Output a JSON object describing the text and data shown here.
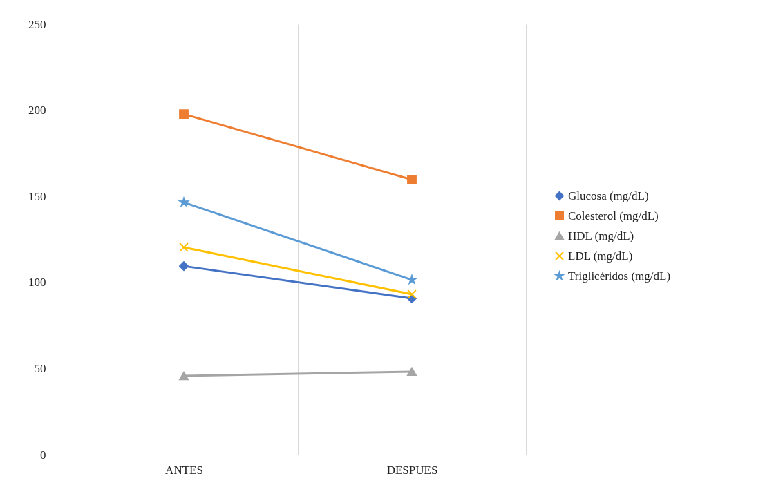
{
  "chart_data": {
    "type": "line",
    "categories": [
      "ANTES",
      "DESPUES"
    ],
    "ylim": [
      0,
      250
    ],
    "yticks": [
      0,
      50,
      100,
      150,
      200,
      250
    ],
    "grid": "x",
    "legend": "right",
    "series": [
      {
        "name": "Glucosa (mg/dL)",
        "color": "#4472c4",
        "marker": "diamond",
        "values": [
          109.5,
          90.7
        ]
      },
      {
        "name": "Colesterol (mg/dL)",
        "color": "#ed7d31",
        "marker": "square",
        "values": [
          197.8,
          159.7
        ]
      },
      {
        "name": "HDL (mg/dL)",
        "color": "#a5a5a5",
        "marker": "triangle",
        "values": [
          45.7,
          48.2
        ]
      },
      {
        "name": "LDL (mg/dL)",
        "color": "#ffc000",
        "marker": "cross",
        "values": [
          120.4,
          93.1
        ]
      },
      {
        "name": "Triglicéridos (mg/dL)",
        "color": "#5b9bd5",
        "marker": "star",
        "values": [
          146.5,
          101.5
        ]
      }
    ]
  }
}
